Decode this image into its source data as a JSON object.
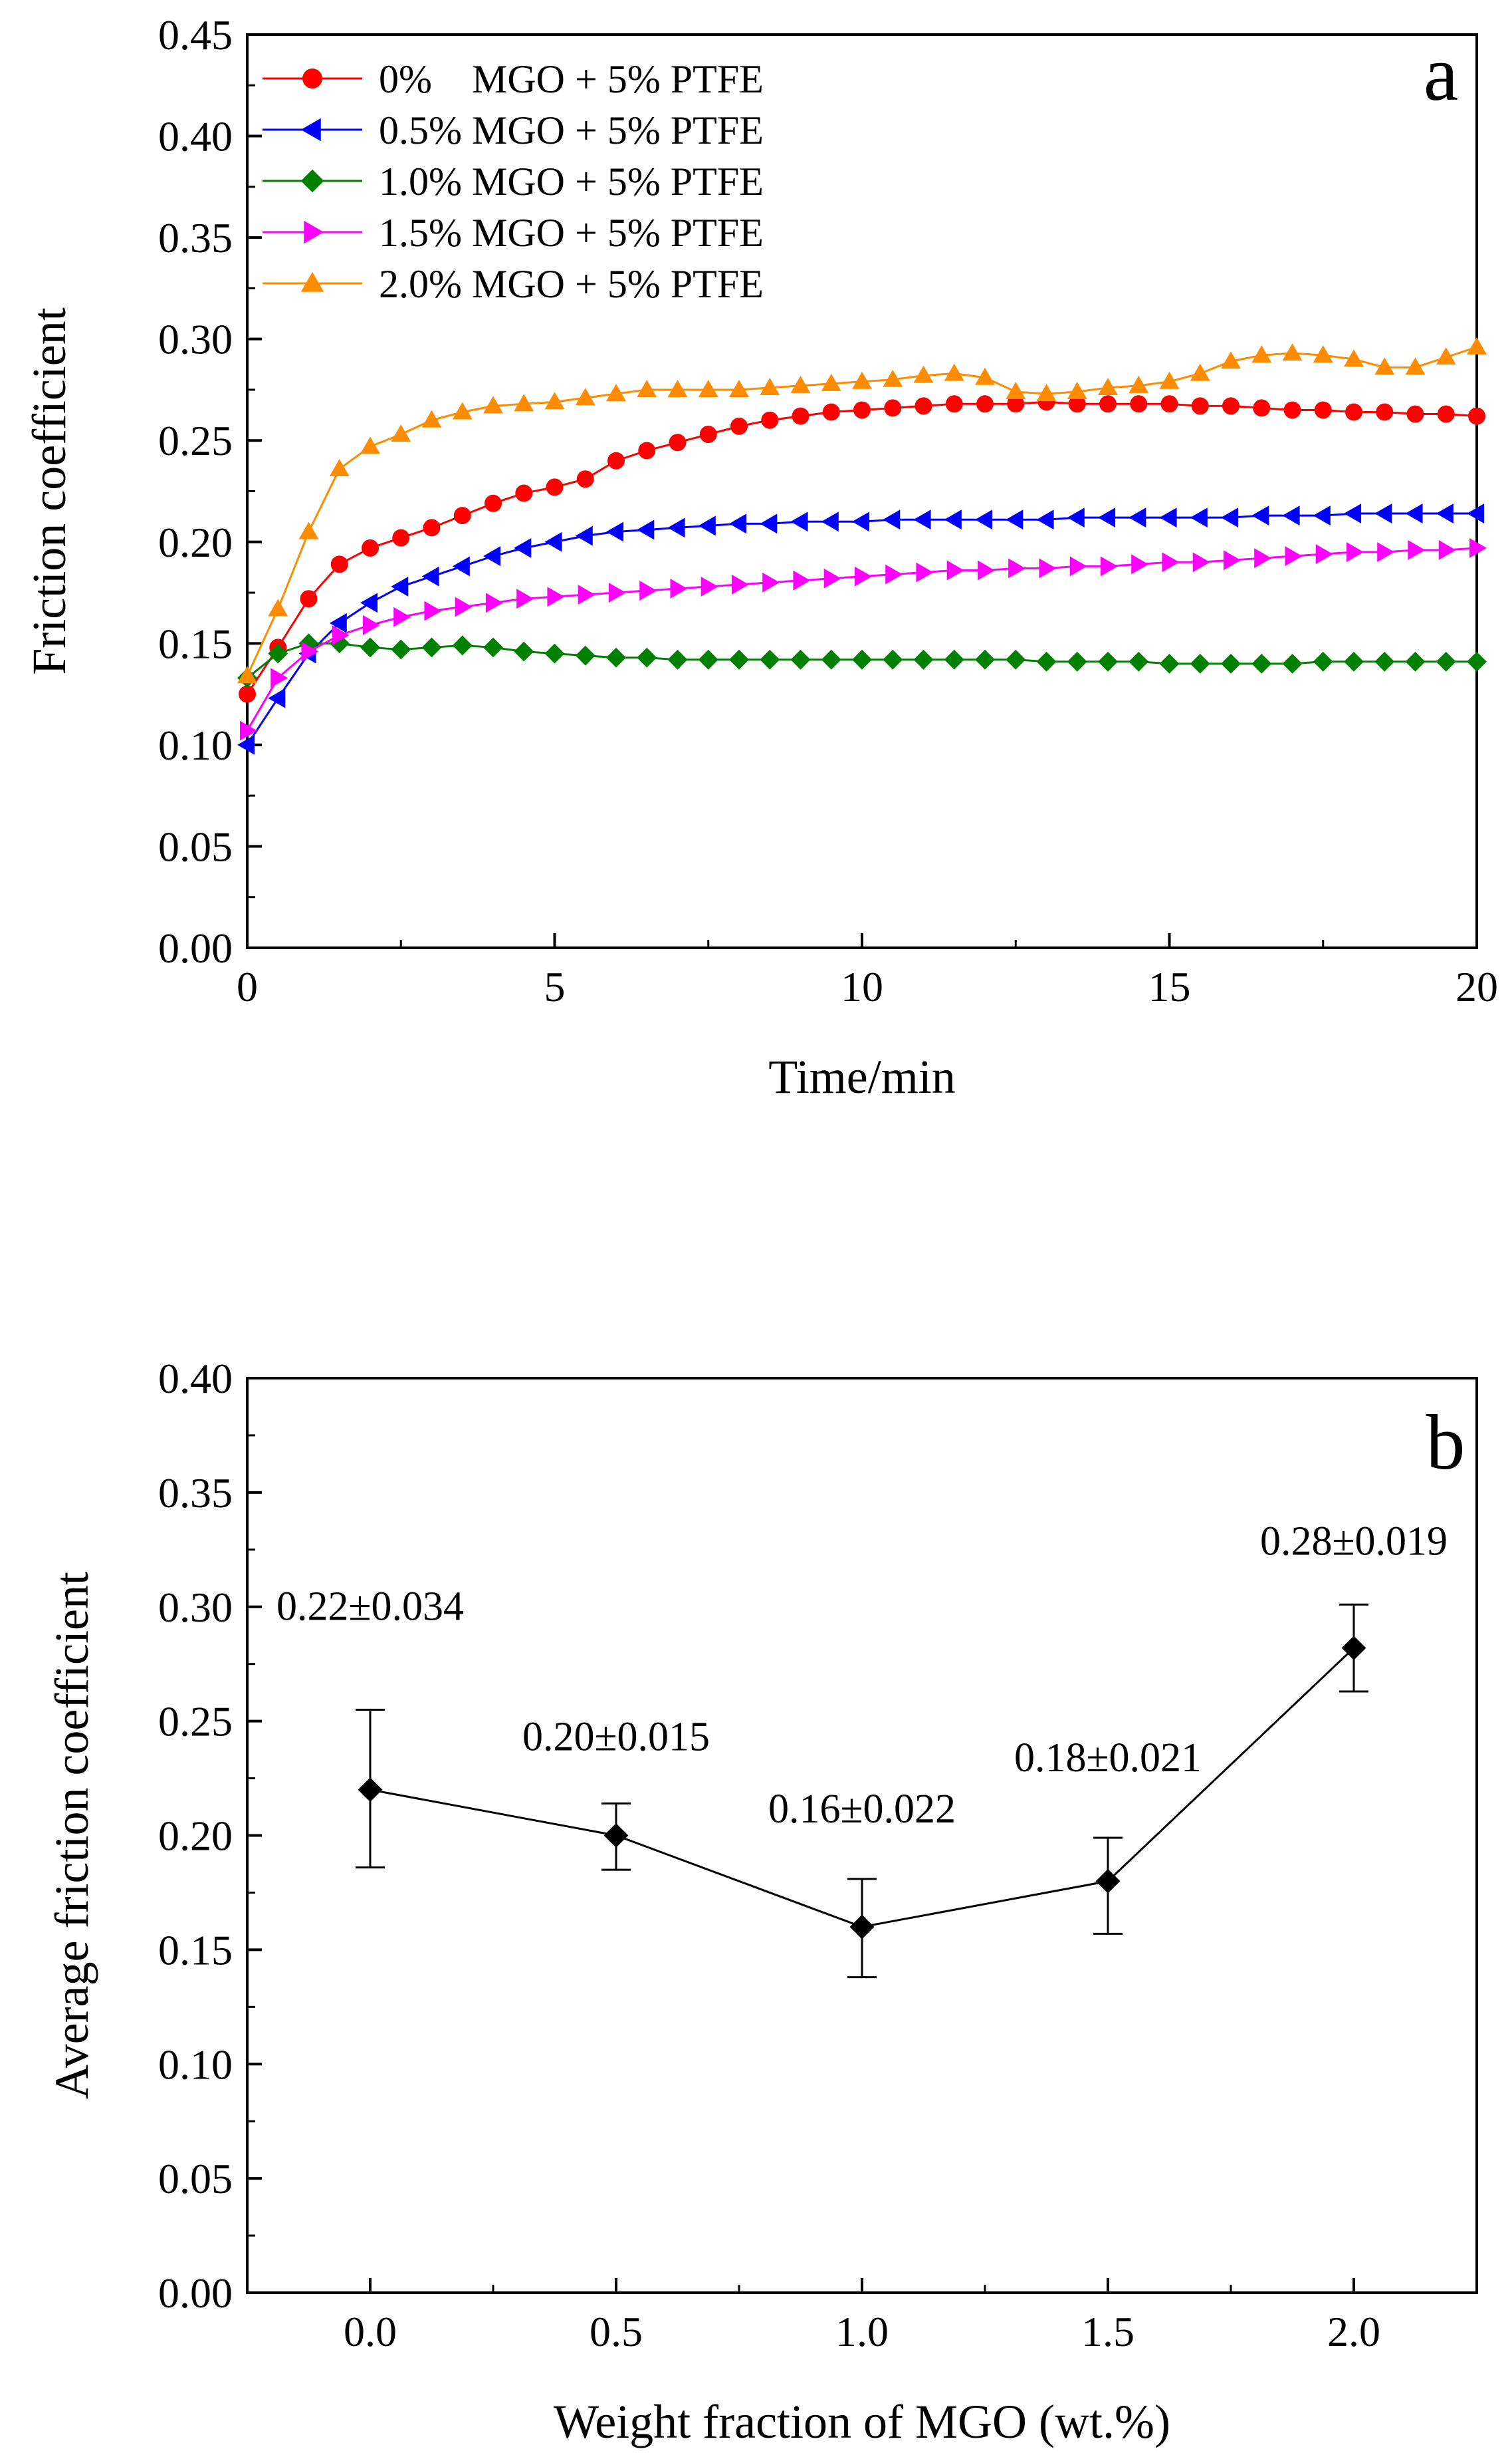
{
  "chart_data": [
    {
      "type": "line",
      "panel_label": "a",
      "xlabel": "Time/min",
      "ylabel": "Friction coefficient",
      "xlim": [
        0,
        20
      ],
      "ylim": [
        0,
        0.45
      ],
      "xticks": [
        0,
        5,
        10,
        15,
        20
      ],
      "xtick_labels": [
        "0",
        "5",
        "10",
        "15",
        "20"
      ],
      "yticks": [
        0,
        0.05,
        0.1,
        0.15,
        0.2,
        0.25,
        0.3,
        0.35,
        0.4,
        0.45
      ],
      "ytick_labels": [
        "0.00",
        "0.05",
        "0.10",
        "0.15",
        "0.20",
        "0.25",
        "0.30",
        "0.35",
        "0.40",
        "0.45"
      ],
      "legend_position": "top-left",
      "series": [
        {
          "name": "0%    MGO + 5% PTFE",
          "color": "#ff0000",
          "marker": "circle",
          "x": [
            0,
            0.5,
            1,
            1.5,
            2,
            2.5,
            3,
            3.5,
            4,
            4.5,
            5,
            5.5,
            6,
            6.5,
            7,
            7.5,
            8,
            8.5,
            9,
            9.5,
            10,
            10.5,
            11,
            11.5,
            12,
            12.5,
            13,
            13.5,
            14,
            14.5,
            15,
            15.5,
            16,
            16.5,
            17,
            17.5,
            18,
            18.5,
            19,
            19.5,
            20
          ],
          "y": [
            0.125,
            0.148,
            0.172,
            0.189,
            0.197,
            0.202,
            0.207,
            0.213,
            0.219,
            0.224,
            0.227,
            0.231,
            0.24,
            0.245,
            0.249,
            0.253,
            0.257,
            0.26,
            0.262,
            0.264,
            0.265,
            0.266,
            0.267,
            0.268,
            0.268,
            0.268,
            0.269,
            0.268,
            0.268,
            0.268,
            0.268,
            0.267,
            0.267,
            0.266,
            0.265,
            0.265,
            0.264,
            0.264,
            0.263,
            0.263,
            0.262
          ]
        },
        {
          "name": "0.5% MGO + 5% PTFE",
          "color": "#0000ff",
          "marker": "triangle-left",
          "x": [
            0,
            0.5,
            1,
            1.5,
            2,
            2.5,
            3,
            3.5,
            4,
            4.5,
            5,
            5.5,
            6,
            6.5,
            7,
            7.5,
            8,
            8.5,
            9,
            9.5,
            10,
            10.5,
            11,
            11.5,
            12,
            12.5,
            13,
            13.5,
            14,
            14.5,
            15,
            15.5,
            16,
            16.5,
            17,
            17.5,
            18,
            18.5,
            19,
            19.5,
            20
          ],
          "y": [
            0.1,
            0.123,
            0.145,
            0.16,
            0.17,
            0.178,
            0.183,
            0.188,
            0.193,
            0.197,
            0.2,
            0.203,
            0.205,
            0.206,
            0.207,
            0.208,
            0.209,
            0.209,
            0.21,
            0.21,
            0.21,
            0.211,
            0.211,
            0.211,
            0.211,
            0.211,
            0.211,
            0.212,
            0.212,
            0.212,
            0.212,
            0.212,
            0.212,
            0.213,
            0.213,
            0.213,
            0.214,
            0.214,
            0.214,
            0.214,
            0.214
          ]
        },
        {
          "name": "1.0% MGO + 5% PTFE",
          "color": "#008000",
          "marker": "diamond",
          "x": [
            0,
            0.5,
            1,
            1.5,
            2,
            2.5,
            3,
            3.5,
            4,
            4.5,
            5,
            5.5,
            6,
            6.5,
            7,
            7.5,
            8,
            8.5,
            9,
            9.5,
            10,
            10.5,
            11,
            11.5,
            12,
            12.5,
            13,
            13.5,
            14,
            14.5,
            15,
            15.5,
            16,
            16.5,
            17,
            17.5,
            18,
            18.5,
            19,
            19.5,
            20
          ],
          "y": [
            0.133,
            0.145,
            0.15,
            0.15,
            0.148,
            0.147,
            0.148,
            0.149,
            0.148,
            0.146,
            0.145,
            0.144,
            0.143,
            0.143,
            0.142,
            0.142,
            0.142,
            0.142,
            0.142,
            0.142,
            0.142,
            0.142,
            0.142,
            0.142,
            0.142,
            0.142,
            0.141,
            0.141,
            0.141,
            0.141,
            0.14,
            0.14,
            0.14,
            0.14,
            0.14,
            0.141,
            0.141,
            0.141,
            0.141,
            0.141,
            0.141
          ]
        },
        {
          "name": "1.5% MGO + 5% PTFE",
          "color": "#ff00ff",
          "marker": "triangle-right",
          "x": [
            0,
            0.5,
            1,
            1.5,
            2,
            2.5,
            3,
            3.5,
            4,
            4.5,
            5,
            5.5,
            6,
            6.5,
            7,
            7.5,
            8,
            8.5,
            9,
            9.5,
            10,
            10.5,
            11,
            11.5,
            12,
            12.5,
            13,
            13.5,
            14,
            14.5,
            15,
            15.5,
            16,
            16.5,
            17,
            17.5,
            18,
            18.5,
            19,
            19.5,
            20
          ],
          "y": [
            0.107,
            0.133,
            0.146,
            0.154,
            0.159,
            0.163,
            0.166,
            0.168,
            0.17,
            0.172,
            0.173,
            0.174,
            0.175,
            0.176,
            0.177,
            0.178,
            0.179,
            0.18,
            0.181,
            0.182,
            0.183,
            0.184,
            0.185,
            0.186,
            0.186,
            0.187,
            0.187,
            0.188,
            0.188,
            0.189,
            0.19,
            0.19,
            0.191,
            0.192,
            0.193,
            0.194,
            0.195,
            0.195,
            0.196,
            0.196,
            0.197
          ]
        },
        {
          "name": "2.0% MGO + 5% PTFE",
          "color": "#ff8c00",
          "marker": "triangle-up",
          "x": [
            0,
            0.5,
            1,
            1.5,
            2,
            2.5,
            3,
            3.5,
            4,
            4.5,
            5,
            5.5,
            6,
            6.5,
            7,
            7.5,
            8,
            8.5,
            9,
            9.5,
            10,
            10.5,
            11,
            11.5,
            12,
            12.5,
            13,
            13.5,
            14,
            14.5,
            15,
            15.5,
            16,
            16.5,
            17,
            17.5,
            18,
            18.5,
            19,
            19.5,
            20
          ],
          "y": [
            0.134,
            0.167,
            0.205,
            0.236,
            0.247,
            0.253,
            0.26,
            0.264,
            0.267,
            0.268,
            0.269,
            0.271,
            0.273,
            0.275,
            0.275,
            0.275,
            0.275,
            0.276,
            0.277,
            0.278,
            0.279,
            0.28,
            0.282,
            0.283,
            0.281,
            0.274,
            0.273,
            0.274,
            0.276,
            0.277,
            0.279,
            0.283,
            0.289,
            0.292,
            0.293,
            0.292,
            0.29,
            0.286,
            0.286,
            0.291,
            0.296
          ]
        }
      ]
    },
    {
      "type": "line",
      "panel_label": "b",
      "xlabel": "Weight fraction of MGO (wt.%)",
      "ylabel": "Average friction coefficient",
      "xlim": [
        -0.25,
        2.25
      ],
      "ylim": [
        0,
        0.4
      ],
      "xticks": [
        0,
        0.5,
        1,
        1.5,
        2
      ],
      "xtick_labels": [
        "0.0",
        "0.5",
        "1.0",
        "1.5",
        "2.0"
      ],
      "yticks": [
        0,
        0.05,
        0.1,
        0.15,
        0.2,
        0.25,
        0.3,
        0.35,
        0.4
      ],
      "ytick_labels": [
        "0.00",
        "0.05",
        "0.10",
        "0.15",
        "0.20",
        "0.25",
        "0.30",
        "0.35",
        "0.40"
      ],
      "series": [
        {
          "name": "Average friction coefficient",
          "color": "#000000",
          "marker": "diamond",
          "x": [
            0,
            0.5,
            1,
            1.5,
            2
          ],
          "y": [
            0.22,
            0.2,
            0.16,
            0.18,
            0.282
          ],
          "error_bars": [
            [
              0.186,
              0.255
            ],
            [
              0.185,
              0.214
            ],
            [
              0.138,
              0.181
            ],
            [
              0.157,
              0.199
            ],
            [
              0.263,
              0.301
            ]
          ],
          "data_labels": [
            "0.22±0.034",
            "0.20±0.015",
            "0.16±0.022",
            "0.18±0.021",
            "0.28±0.019"
          ]
        }
      ]
    }
  ]
}
